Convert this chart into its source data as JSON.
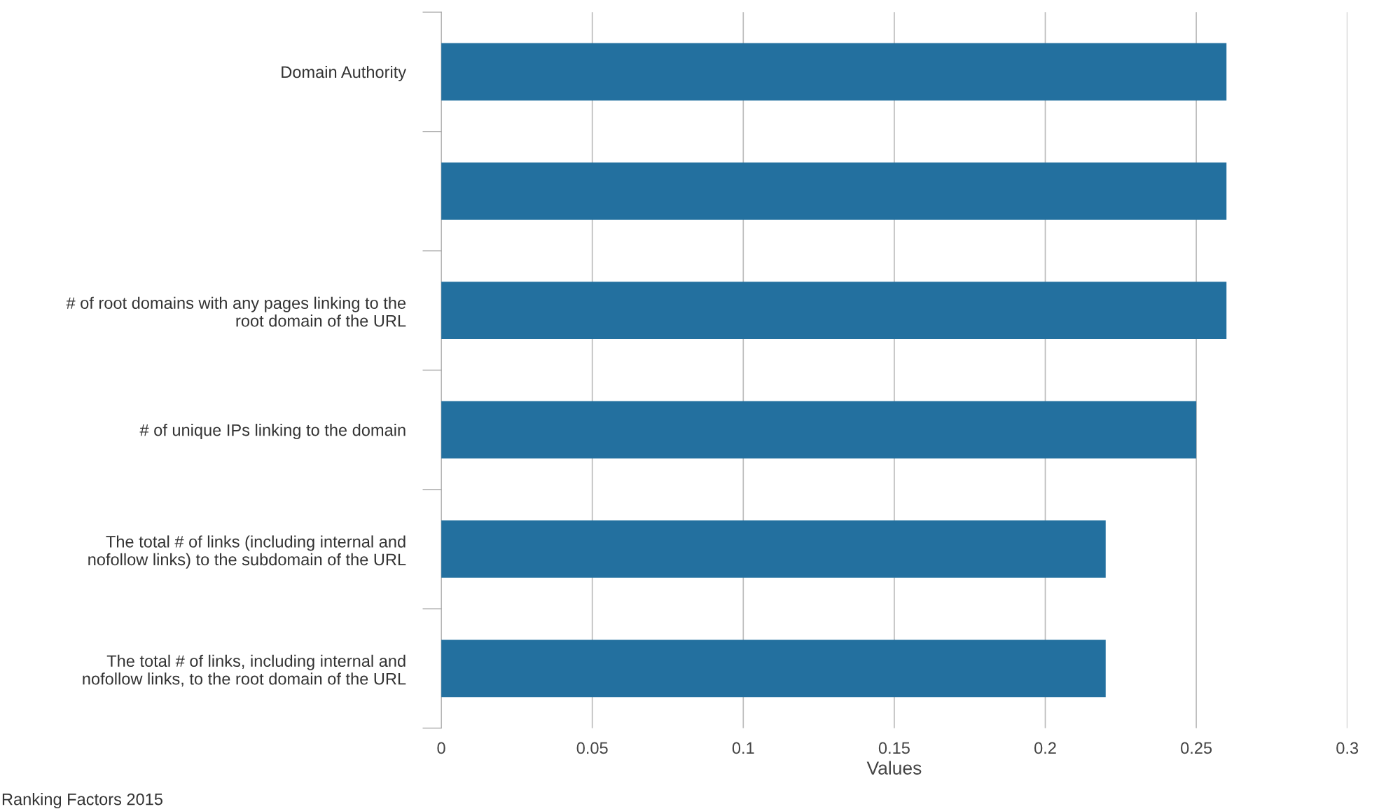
{
  "chart_data": {
    "type": "bar",
    "orientation": "horizontal",
    "categories": [
      "Domain Authority",
      null,
      "# of root domains with any pages linking to the\nroot domain of the URL",
      "# of unique IPs linking to the domain",
      "The total # of links (including internal and\nnofollow links) to the subdomain of the URL",
      "The total # of links, including internal and\nnofollow links, to the root domain of the URL"
    ],
    "values": [
      0.26,
      0.26,
      0.26,
      0.25,
      0.22,
      0.22
    ],
    "color": "#23709f",
    "xlabel": "Values",
    "xlim": [
      0,
      0.3
    ],
    "xticks": [
      0,
      0.05,
      0.1,
      0.15,
      0.2,
      0.25,
      0.3
    ],
    "grid": "x",
    "annotations": [
      "Ranking Factors 2015"
    ]
  }
}
